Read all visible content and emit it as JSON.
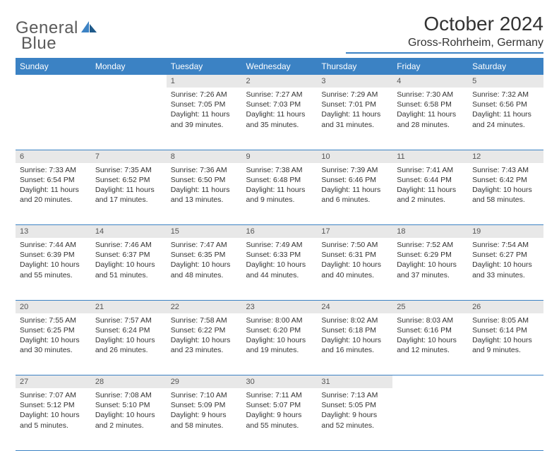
{
  "brand": {
    "word1": "General",
    "word2": "Blue"
  },
  "title": "October 2024",
  "location": "Gross-Rohrheim, Germany",
  "colors": {
    "header_bg": "#3b82c4",
    "header_text": "#ffffff",
    "daynum_bg": "#e8e8e8",
    "daynum_text": "#555555",
    "body_text": "#333333",
    "rule": "#3b82c4",
    "page_bg": "#ffffff",
    "logo_gray": "#5a5a5a",
    "logo_blue": "#3b82c4"
  },
  "typography": {
    "title_fontsize": 28,
    "location_fontsize": 16,
    "dayheader_fontsize": 12,
    "daynum_fontsize": 11,
    "cell_fontsize": 10.5
  },
  "day_headers": [
    "Sunday",
    "Monday",
    "Tuesday",
    "Wednesday",
    "Thursday",
    "Friday",
    "Saturday"
  ],
  "weeks": [
    [
      null,
      null,
      {
        "n": "1",
        "sr": "Sunrise: 7:26 AM",
        "ss": "Sunset: 7:05 PM",
        "dl": "Daylight: 11 hours and 39 minutes."
      },
      {
        "n": "2",
        "sr": "Sunrise: 7:27 AM",
        "ss": "Sunset: 7:03 PM",
        "dl": "Daylight: 11 hours and 35 minutes."
      },
      {
        "n": "3",
        "sr": "Sunrise: 7:29 AM",
        "ss": "Sunset: 7:01 PM",
        "dl": "Daylight: 11 hours and 31 minutes."
      },
      {
        "n": "4",
        "sr": "Sunrise: 7:30 AM",
        "ss": "Sunset: 6:58 PM",
        "dl": "Daylight: 11 hours and 28 minutes."
      },
      {
        "n": "5",
        "sr": "Sunrise: 7:32 AM",
        "ss": "Sunset: 6:56 PM",
        "dl": "Daylight: 11 hours and 24 minutes."
      }
    ],
    [
      {
        "n": "6",
        "sr": "Sunrise: 7:33 AM",
        "ss": "Sunset: 6:54 PM",
        "dl": "Daylight: 11 hours and 20 minutes."
      },
      {
        "n": "7",
        "sr": "Sunrise: 7:35 AM",
        "ss": "Sunset: 6:52 PM",
        "dl": "Daylight: 11 hours and 17 minutes."
      },
      {
        "n": "8",
        "sr": "Sunrise: 7:36 AM",
        "ss": "Sunset: 6:50 PM",
        "dl": "Daylight: 11 hours and 13 minutes."
      },
      {
        "n": "9",
        "sr": "Sunrise: 7:38 AM",
        "ss": "Sunset: 6:48 PM",
        "dl": "Daylight: 11 hours and 9 minutes."
      },
      {
        "n": "10",
        "sr": "Sunrise: 7:39 AM",
        "ss": "Sunset: 6:46 PM",
        "dl": "Daylight: 11 hours and 6 minutes."
      },
      {
        "n": "11",
        "sr": "Sunrise: 7:41 AM",
        "ss": "Sunset: 6:44 PM",
        "dl": "Daylight: 11 hours and 2 minutes."
      },
      {
        "n": "12",
        "sr": "Sunrise: 7:43 AM",
        "ss": "Sunset: 6:42 PM",
        "dl": "Daylight: 10 hours and 58 minutes."
      }
    ],
    [
      {
        "n": "13",
        "sr": "Sunrise: 7:44 AM",
        "ss": "Sunset: 6:39 PM",
        "dl": "Daylight: 10 hours and 55 minutes."
      },
      {
        "n": "14",
        "sr": "Sunrise: 7:46 AM",
        "ss": "Sunset: 6:37 PM",
        "dl": "Daylight: 10 hours and 51 minutes."
      },
      {
        "n": "15",
        "sr": "Sunrise: 7:47 AM",
        "ss": "Sunset: 6:35 PM",
        "dl": "Daylight: 10 hours and 48 minutes."
      },
      {
        "n": "16",
        "sr": "Sunrise: 7:49 AM",
        "ss": "Sunset: 6:33 PM",
        "dl": "Daylight: 10 hours and 44 minutes."
      },
      {
        "n": "17",
        "sr": "Sunrise: 7:50 AM",
        "ss": "Sunset: 6:31 PM",
        "dl": "Daylight: 10 hours and 40 minutes."
      },
      {
        "n": "18",
        "sr": "Sunrise: 7:52 AM",
        "ss": "Sunset: 6:29 PM",
        "dl": "Daylight: 10 hours and 37 minutes."
      },
      {
        "n": "19",
        "sr": "Sunrise: 7:54 AM",
        "ss": "Sunset: 6:27 PM",
        "dl": "Daylight: 10 hours and 33 minutes."
      }
    ],
    [
      {
        "n": "20",
        "sr": "Sunrise: 7:55 AM",
        "ss": "Sunset: 6:25 PM",
        "dl": "Daylight: 10 hours and 30 minutes."
      },
      {
        "n": "21",
        "sr": "Sunrise: 7:57 AM",
        "ss": "Sunset: 6:24 PM",
        "dl": "Daylight: 10 hours and 26 minutes."
      },
      {
        "n": "22",
        "sr": "Sunrise: 7:58 AM",
        "ss": "Sunset: 6:22 PM",
        "dl": "Daylight: 10 hours and 23 minutes."
      },
      {
        "n": "23",
        "sr": "Sunrise: 8:00 AM",
        "ss": "Sunset: 6:20 PM",
        "dl": "Daylight: 10 hours and 19 minutes."
      },
      {
        "n": "24",
        "sr": "Sunrise: 8:02 AM",
        "ss": "Sunset: 6:18 PM",
        "dl": "Daylight: 10 hours and 16 minutes."
      },
      {
        "n": "25",
        "sr": "Sunrise: 8:03 AM",
        "ss": "Sunset: 6:16 PM",
        "dl": "Daylight: 10 hours and 12 minutes."
      },
      {
        "n": "26",
        "sr": "Sunrise: 8:05 AM",
        "ss": "Sunset: 6:14 PM",
        "dl": "Daylight: 10 hours and 9 minutes."
      }
    ],
    [
      {
        "n": "27",
        "sr": "Sunrise: 7:07 AM",
        "ss": "Sunset: 5:12 PM",
        "dl": "Daylight: 10 hours and 5 minutes."
      },
      {
        "n": "28",
        "sr": "Sunrise: 7:08 AM",
        "ss": "Sunset: 5:10 PM",
        "dl": "Daylight: 10 hours and 2 minutes."
      },
      {
        "n": "29",
        "sr": "Sunrise: 7:10 AM",
        "ss": "Sunset: 5:09 PM",
        "dl": "Daylight: 9 hours and 58 minutes."
      },
      {
        "n": "30",
        "sr": "Sunrise: 7:11 AM",
        "ss": "Sunset: 5:07 PM",
        "dl": "Daylight: 9 hours and 55 minutes."
      },
      {
        "n": "31",
        "sr": "Sunrise: 7:13 AM",
        "ss": "Sunset: 5:05 PM",
        "dl": "Daylight: 9 hours and 52 minutes."
      },
      null,
      null
    ]
  ]
}
